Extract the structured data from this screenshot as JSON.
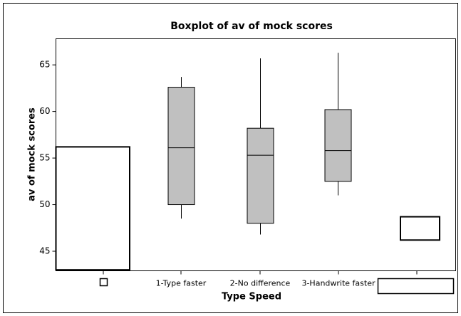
{
  "chart_data": {
    "type": "box",
    "title": "Boxplot of av of mock scores",
    "x_label": "Type Speed",
    "y_label": "av of mock scores",
    "categories": [
      null,
      "1-Type faster",
      "2-No difference",
      "3-Handwrite faster",
      null
    ],
    "boxes": [
      {
        "low": null,
        "q1": 43,
        "median": null,
        "q3": 56.2,
        "high": null,
        "color": "#ffffff"
      },
      {
        "low": 48.5,
        "q1": 50,
        "median": 56.1,
        "q3": 62.6,
        "high": 63.7,
        "color": "#c0c0c0"
      },
      {
        "low": 46.8,
        "q1": 48,
        "median": 55.3,
        "q3": 58.2,
        "high": 65.7,
        "color": "#c0c0c0"
      },
      {
        "low": 51,
        "q1": 52.5,
        "median": 55.8,
        "q3": 60.2,
        "high": 66.3,
        "color": "#c0c0c0"
      },
      {
        "low": null,
        "q1": 46.2,
        "median": null,
        "q3": 48.7,
        "high": null,
        "color": "#ffffff"
      }
    ],
    "ylim": [
      42.9,
      67.8
    ],
    "yticks": [
      45,
      50,
      55,
      60,
      65
    ]
  }
}
